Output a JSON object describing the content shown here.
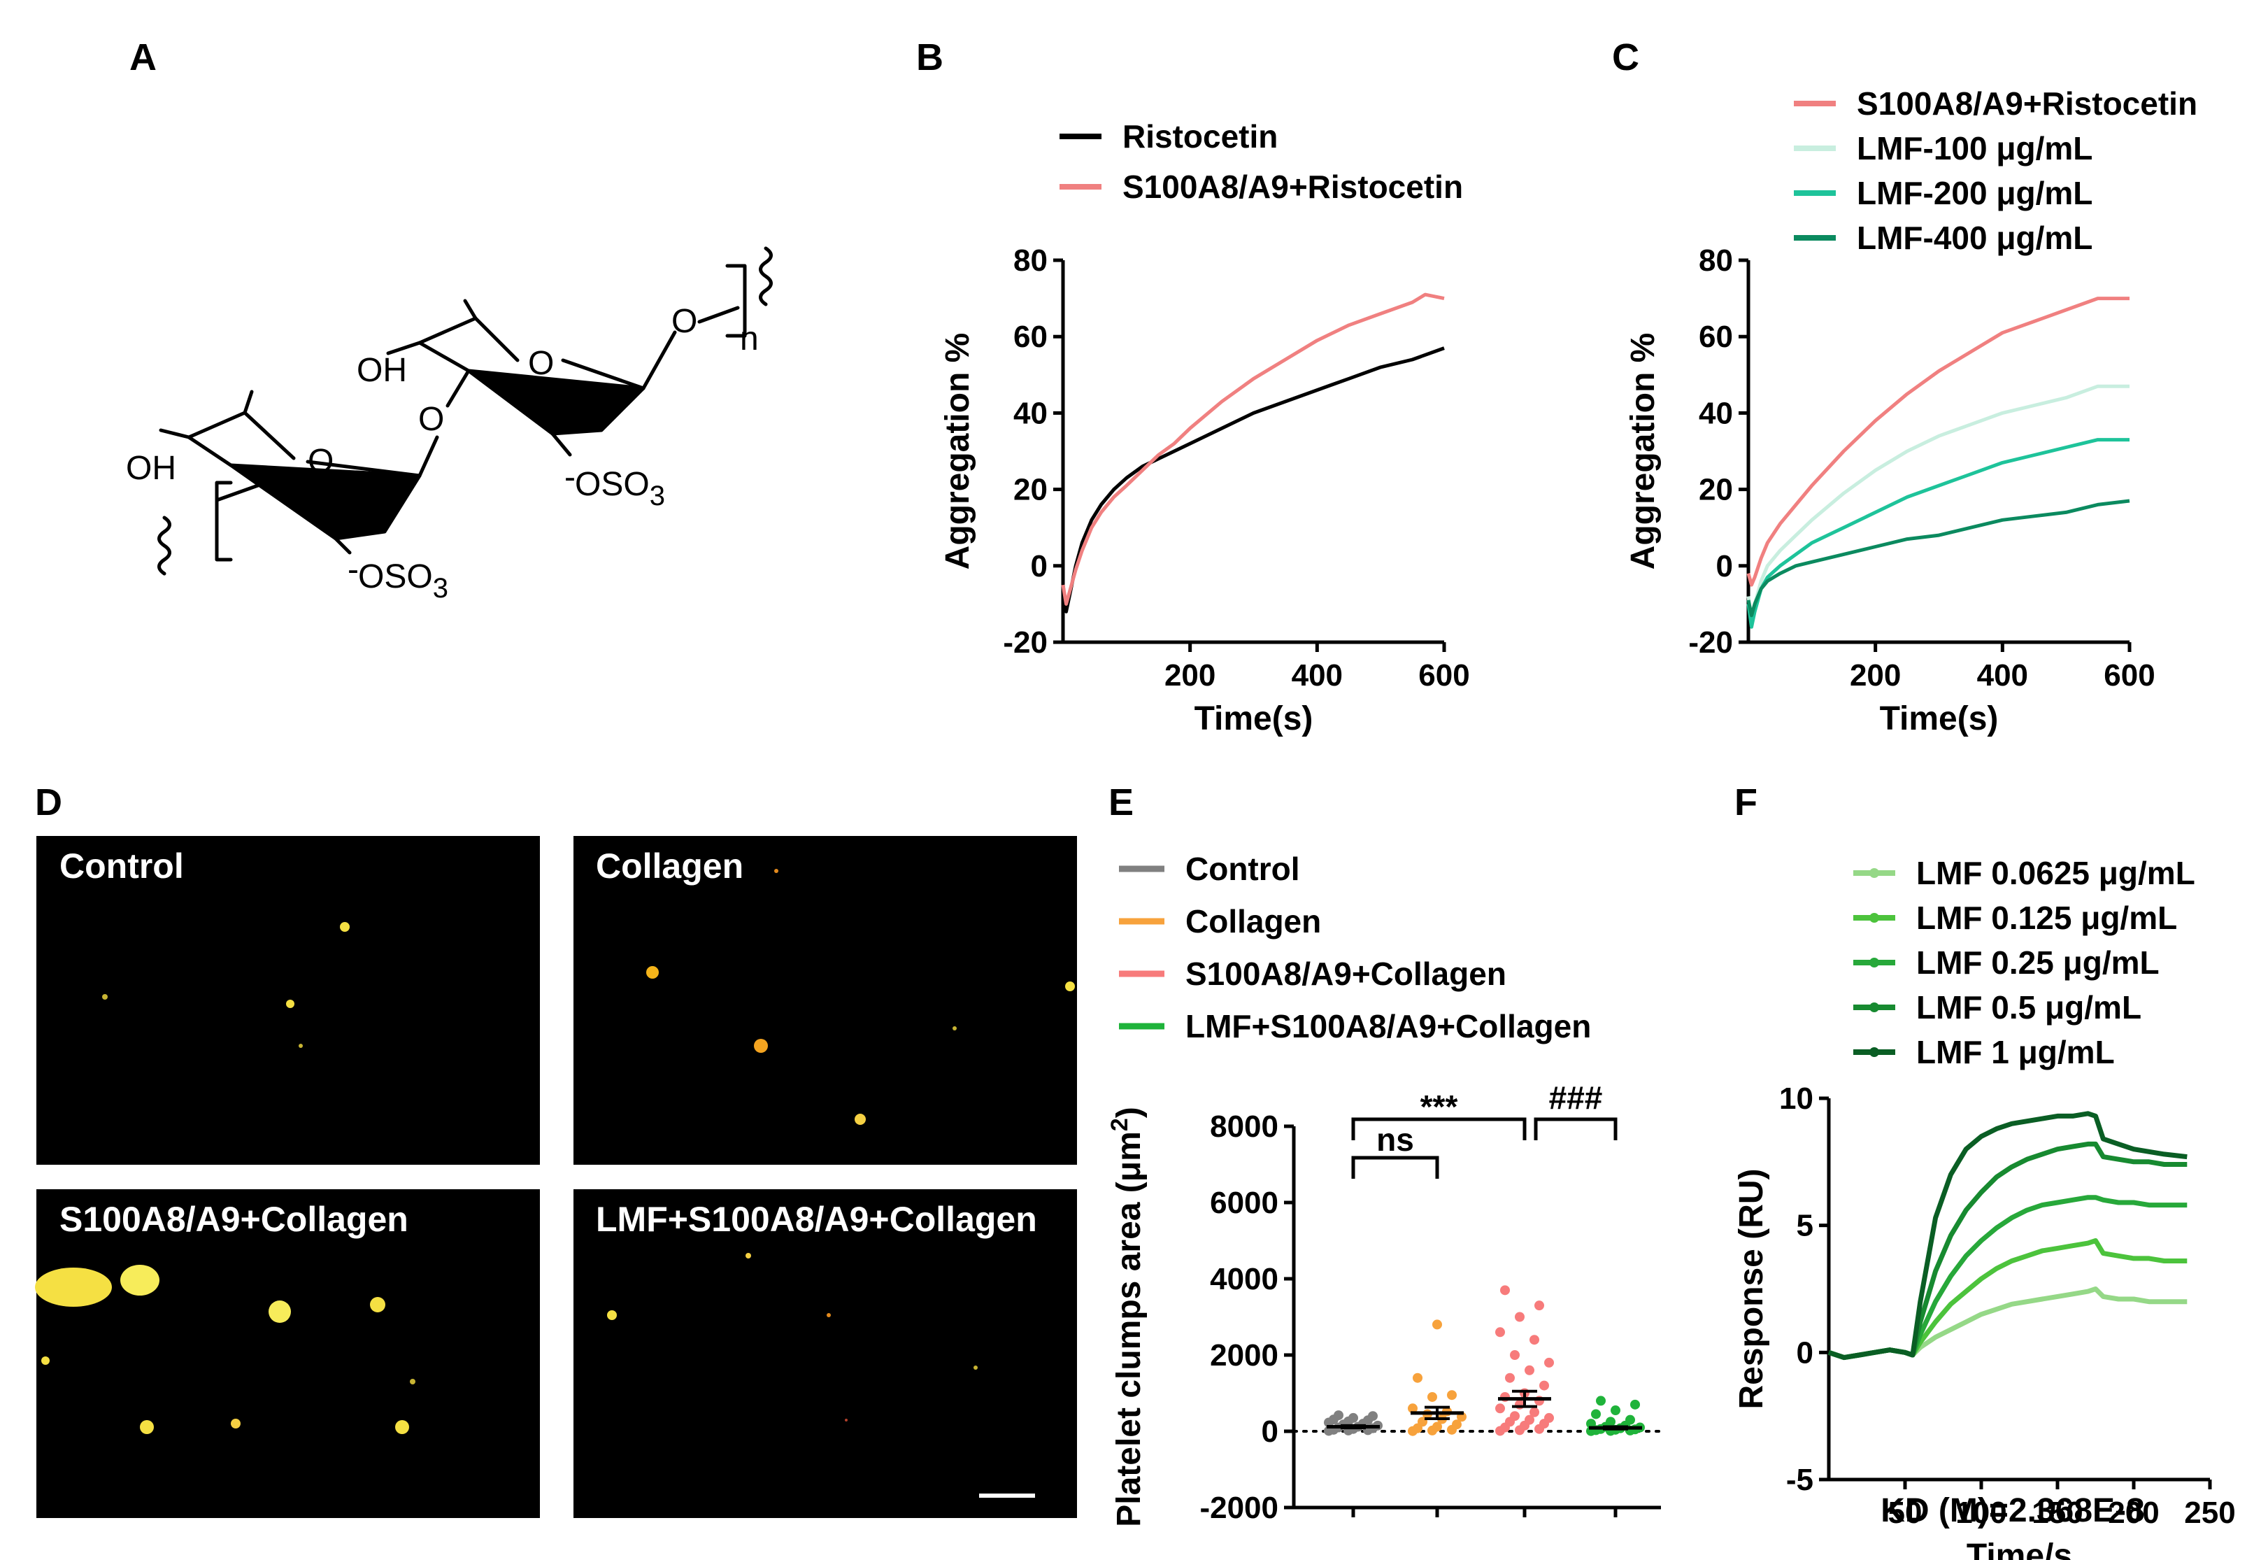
{
  "panels": {
    "a": "A",
    "b": "B",
    "c": "C",
    "d": "D",
    "e": "E",
    "f": "F"
  },
  "structure": {
    "oh1": "OH",
    "oh2": "OH",
    "oso3_1": "OSO",
    "oso3_1_sub": "3",
    "oso3_2": "OSO",
    "oso3_2_sub": "3",
    "minus": "-",
    "o1": "O",
    "o2": "O",
    "o3": "O",
    "o4": "O",
    "n": "n"
  },
  "micrographs": {
    "control": "Control",
    "collagen": "Collagen",
    "s100": "S100A8/A9+Collagen",
    "lmf": "LMF+S100A8/A9+Collagen"
  },
  "colors": {
    "ristocetin": "#000000",
    "s100": "#f08080",
    "lmf100": "#c8eedf",
    "lmf200": "#1ec39a",
    "lmf400": "#0b8a5f",
    "control": "#808080",
    "collagen": "#f7a23c",
    "s100col": "#f77b7b",
    "lmfcol": "#1fb33a",
    "f1": "#95d887",
    "f2": "#4cc33c",
    "f3": "#27a83a",
    "f4": "#178a30",
    "f5": "#0a5e24"
  },
  "chart_data": [
    {
      "panel": "B",
      "type": "line",
      "xlabel": "Time(s)",
      "ylabel": "Aggregation  %",
      "xlim": [
        0,
        600
      ],
      "ylim": [
        -20,
        80
      ],
      "xticks": [
        "200",
        "400",
        "600"
      ],
      "yticks": [
        "-20",
        "0",
        "20",
        "40",
        "60",
        "80"
      ],
      "legend_position": "top",
      "series": [
        {
          "name": "Ristocetin",
          "x": [
            0,
            5,
            10,
            20,
            30,
            45,
            60,
            80,
            100,
            125,
            150,
            175,
            200,
            250,
            300,
            350,
            400,
            450,
            500,
            550,
            600
          ],
          "y": [
            -5,
            -12,
            -8,
            0,
            6,
            12,
            16,
            20,
            23,
            26,
            28,
            30,
            32,
            36,
            40,
            43,
            46,
            49,
            52,
            54,
            57
          ]
        },
        {
          "name": "S100A8/A9+Ristocetin",
          "x": [
            0,
            5,
            10,
            20,
            30,
            45,
            60,
            80,
            100,
            125,
            150,
            175,
            200,
            250,
            300,
            350,
            400,
            450,
            500,
            550,
            570,
            600
          ],
          "y": [
            -5,
            -10,
            -7,
            -1,
            4,
            10,
            14,
            18,
            21,
            25,
            29,
            32,
            36,
            43,
            49,
            54,
            59,
            63,
            66,
            69,
            71,
            70
          ]
        }
      ]
    },
    {
      "panel": "C",
      "type": "line",
      "xlabel": "Time(s)",
      "ylabel": "Aggregation  %",
      "xlim": [
        0,
        600
      ],
      "ylim": [
        -20,
        80
      ],
      "xticks": [
        "200",
        "400",
        "600"
      ],
      "yticks": [
        "-20",
        "0",
        "20",
        "40",
        "60",
        "80"
      ],
      "legend_position": "top",
      "series": [
        {
          "name": "S100A8/A9+Ristocetin",
          "x": [
            0,
            5,
            10,
            20,
            30,
            50,
            75,
            100,
            150,
            200,
            250,
            300,
            350,
            400,
            450,
            500,
            550,
            600
          ],
          "y": [
            -2,
            -5,
            -3,
            2,
            6,
            11,
            16,
            21,
            30,
            38,
            45,
            51,
            56,
            61,
            64,
            67,
            70,
            70
          ]
        },
        {
          "name": "LMF-100 μg/mL",
          "x": [
            0,
            5,
            10,
            20,
            30,
            50,
            75,
            100,
            150,
            200,
            250,
            300,
            350,
            400,
            450,
            500,
            550,
            600
          ],
          "y": [
            -8,
            -14,
            -10,
            -4,
            0,
            4,
            8,
            12,
            19,
            25,
            30,
            34,
            37,
            40,
            42,
            44,
            47,
            47
          ]
        },
        {
          "name": "LMF-200 μg/mL",
          "x": [
            0,
            5,
            10,
            20,
            30,
            50,
            75,
            100,
            150,
            200,
            250,
            300,
            350,
            400,
            450,
            500,
            550,
            600
          ],
          "y": [
            -10,
            -16,
            -12,
            -6,
            -3,
            0,
            3,
            6,
            10,
            14,
            18,
            21,
            24,
            27,
            29,
            31,
            33,
            33
          ]
        },
        {
          "name": "LMF-400 μg/mL",
          "x": [
            0,
            5,
            10,
            20,
            30,
            50,
            75,
            100,
            150,
            200,
            250,
            300,
            350,
            400,
            450,
            500,
            550,
            600
          ],
          "y": [
            -9,
            -13,
            -10,
            -6,
            -4,
            -2,
            0,
            1,
            3,
            5,
            7,
            8,
            10,
            12,
            13,
            14,
            16,
            17
          ]
        }
      ]
    },
    {
      "panel": "E",
      "type": "scatter",
      "ylabel": "Platelet clumps area (μm²)",
      "ylabel_text": "Platelet clumps area (μm",
      "ylabel_sup": "2",
      "ylabel_close": ")",
      "ylim": [
        -2000,
        8000
      ],
      "yticks": [
        "-2000",
        "0",
        "2000",
        "4000",
        "6000",
        "8000"
      ],
      "legend_position": "top",
      "series": [
        {
          "name": "Control",
          "mean": 120,
          "sem": 30,
          "values": [
            10,
            20,
            30,
            40,
            60,
            80,
            100,
            120,
            150,
            180,
            200,
            230,
            260,
            290,
            310,
            350,
            400,
            420
          ]
        },
        {
          "name": "Collagen",
          "mean": 480,
          "sem": 150,
          "values": [
            5,
            20,
            40,
            80,
            120,
            180,
            250,
            320,
            380,
            450,
            520,
            600,
            900,
            950,
            1400,
            2800
          ]
        },
        {
          "name": "S100A8/A9+Collagen",
          "mean": 850,
          "sem": 200,
          "values": [
            10,
            30,
            60,
            100,
            150,
            200,
            250,
            300,
            350,
            400,
            500,
            600,
            700,
            800,
            900,
            1000,
            1200,
            1400,
            1600,
            1800,
            2000,
            2400,
            2600,
            3000,
            3300,
            3700
          ]
        },
        {
          "name": "LMF+S100A8/A9+Collagen",
          "mean": 90,
          "sem": 30,
          "values": [
            5,
            10,
            20,
            30,
            40,
            50,
            60,
            80,
            100,
            120,
            150,
            200,
            250,
            300,
            450,
            550,
            700,
            800
          ]
        }
      ],
      "annotations": {
        "sig1": "ns",
        "sig2": "***",
        "sig3": "###"
      }
    },
    {
      "panel": "F",
      "type": "line",
      "xlabel": "Time/s",
      "ylabel": "Response (RU)",
      "xlim": [
        0,
        250
      ],
      "ylim": [
        -5,
        10
      ],
      "xticks": [
        "50",
        "100",
        "150",
        "200",
        "250"
      ],
      "yticks": [
        "-5",
        "0",
        "5",
        "10"
      ],
      "legend_position": "top",
      "footnote": "KD (M)=2.368E-8",
      "series": [
        {
          "name": "LMF 0.0625 μg/mL",
          "x": [
            0,
            10,
            20,
            30,
            40,
            50,
            55,
            60,
            70,
            80,
            90,
            100,
            110,
            120,
            130,
            140,
            150,
            160,
            170,
            175,
            180,
            190,
            200,
            210,
            220,
            235
          ],
          "y": [
            0,
            -0.2,
            -0.1,
            0,
            0.1,
            0,
            -0.1,
            0.2,
            0.6,
            0.9,
            1.2,
            1.5,
            1.7,
            1.9,
            2.0,
            2.1,
            2.2,
            2.3,
            2.4,
            2.5,
            2.2,
            2.1,
            2.1,
            2.0,
            2.0,
            2.0
          ]
        },
        {
          "name": "LMF 0.125 μg/mL",
          "x": [
            0,
            10,
            20,
            30,
            40,
            50,
            55,
            60,
            70,
            80,
            90,
            100,
            110,
            120,
            130,
            140,
            150,
            160,
            170,
            175,
            180,
            190,
            200,
            210,
            220,
            235
          ],
          "y": [
            0,
            -0.2,
            -0.1,
            0,
            0.1,
            0,
            -0.1,
            0.4,
            1.2,
            1.9,
            2.4,
            2.9,
            3.3,
            3.6,
            3.8,
            4.0,
            4.1,
            4.2,
            4.3,
            4.4,
            3.9,
            3.8,
            3.7,
            3.7,
            3.6,
            3.6
          ]
        },
        {
          "name": "LMF 0.25 μg/mL",
          "x": [
            0,
            10,
            20,
            30,
            40,
            50,
            55,
            60,
            70,
            80,
            90,
            100,
            110,
            120,
            130,
            140,
            150,
            160,
            170,
            175,
            180,
            190,
            200,
            210,
            220,
            235
          ],
          "y": [
            0,
            -0.2,
            -0.1,
            0,
            0.1,
            0,
            -0.1,
            0.7,
            2.0,
            3.0,
            3.8,
            4.4,
            4.9,
            5.3,
            5.6,
            5.8,
            5.9,
            6.0,
            6.1,
            6.1,
            6.0,
            5.9,
            5.9,
            5.8,
            5.8,
            5.8
          ]
        },
        {
          "name": "LMF 0.5 μg/mL",
          "x": [
            0,
            10,
            20,
            30,
            40,
            50,
            55,
            60,
            70,
            80,
            90,
            100,
            110,
            120,
            130,
            140,
            150,
            160,
            170,
            175,
            180,
            190,
            200,
            210,
            220,
            235
          ],
          "y": [
            0,
            -0.2,
            -0.1,
            0,
            0.1,
            0,
            -0.1,
            1.2,
            3.2,
            4.6,
            5.6,
            6.3,
            6.9,
            7.3,
            7.6,
            7.8,
            8.0,
            8.1,
            8.2,
            8.2,
            7.7,
            7.6,
            7.5,
            7.5,
            7.4,
            7.4
          ]
        },
        {
          "name": "LMF 1 μg/mL",
          "x": [
            0,
            10,
            20,
            30,
            40,
            50,
            55,
            60,
            70,
            80,
            90,
            100,
            110,
            120,
            130,
            140,
            150,
            160,
            170,
            175,
            180,
            190,
            200,
            210,
            220,
            235
          ],
          "y": [
            0,
            -0.2,
            -0.1,
            0,
            0.1,
            0,
            -0.1,
            2.0,
            5.3,
            7.0,
            8.0,
            8.5,
            8.8,
            9.0,
            9.1,
            9.2,
            9.3,
            9.3,
            9.4,
            9.3,
            8.4,
            8.2,
            8.0,
            7.9,
            7.8,
            7.7
          ]
        }
      ]
    }
  ]
}
